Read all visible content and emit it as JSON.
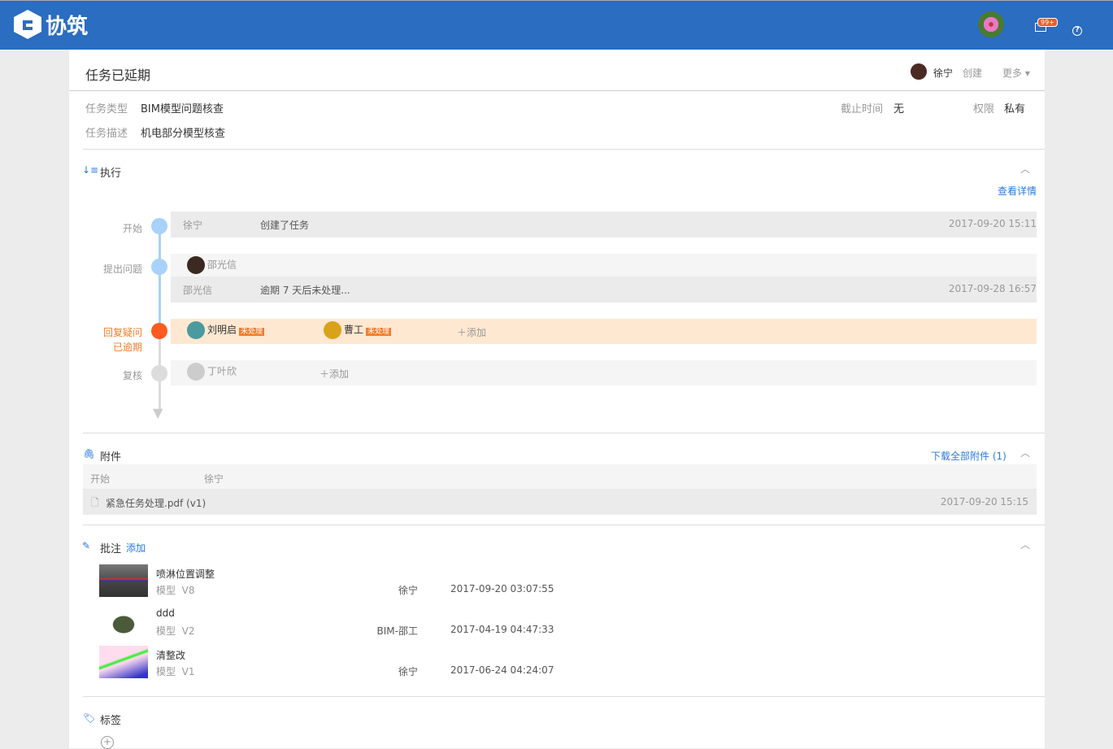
{
  "header": {
    "brand": "协筑",
    "notification_badge": "99+",
    "colors": {
      "bar": "#2a6dc1",
      "badge": "#f05a22"
    }
  },
  "task": {
    "title": "任务已延期",
    "creator": "徐宁",
    "creator_action": "创建",
    "more": "更多",
    "type_label": "任务类型",
    "type_value": "BIM模型问题核查",
    "desc_label": "任务描述",
    "desc_value": "机电部分模型核查",
    "deadline_label": "截止时间",
    "deadline_value": "无",
    "perm_label": "权限",
    "perm_value": "私有"
  },
  "execution": {
    "title": "执行",
    "view_details": "查看详情",
    "steps": [
      {
        "label": "开始",
        "actor": "徐宁",
        "action": "创建了任务",
        "time": "2017-09-20 15:11"
      },
      {
        "label": "提出问题",
        "assignee": "邵光信",
        "actor": "邵光信",
        "action": "逾期 7 天后未处理...",
        "time": "2017-09-28 16:57"
      },
      {
        "label": "回复疑问",
        "sublabel": "已逾期",
        "assignees": [
          {
            "name": "刘明启",
            "status": "未处理"
          },
          {
            "name": "曹工",
            "status": "未处理"
          }
        ],
        "add": "添加"
      },
      {
        "label": "复核",
        "assignee": "丁叶欣",
        "add": "添加"
      }
    ],
    "colors": {
      "done": "#a8d2fa",
      "overdue": "#ff5a1f",
      "pending": "#dcdcdc"
    }
  },
  "attachments": {
    "title": "附件",
    "download_all": "下载全部附件 (1)",
    "stage": "开始",
    "uploader": "徐宁",
    "file": "紧急任务处理.pdf (v1)",
    "time": "2017-09-20 15:15"
  },
  "annotations": {
    "title": "批注",
    "add": "添加",
    "items": [
      {
        "name": "喷淋位置调整",
        "type": "模型",
        "version": "V8",
        "user": "徐宁",
        "time": "2017-09-20 03:07:55"
      },
      {
        "name": "ddd",
        "type": "模型",
        "version": "V2",
        "user": "BIM-邵工",
        "time": "2017-04-19 04:47:33"
      },
      {
        "name": "清整改",
        "type": "模型",
        "version": "V1",
        "user": "徐宁",
        "time": "2017-06-24 04:24:07"
      }
    ]
  },
  "tags": {
    "title": "标签"
  }
}
